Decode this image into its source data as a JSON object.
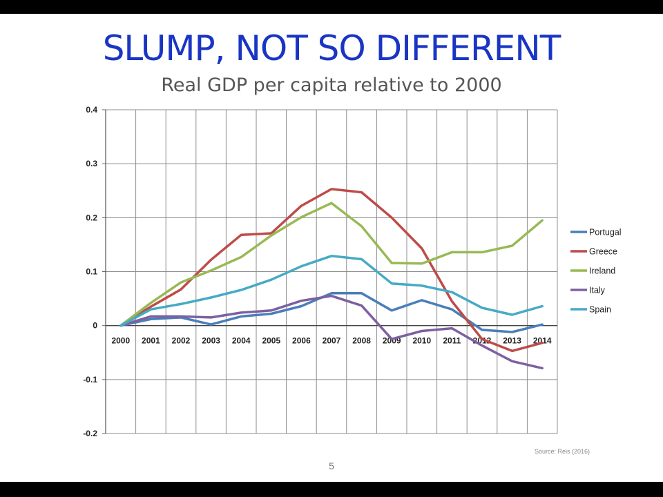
{
  "slide": {
    "title": "SLUMP, NOT SO DIFFERENT",
    "subtitle": "Real GDP per capita relative to 2000",
    "source": "Source: Reis (2016)",
    "page_number": "5"
  },
  "chart_data": {
    "type": "line",
    "title": "",
    "xlabel": "",
    "ylabel": "",
    "categories": [
      "2000",
      "2001",
      "2002",
      "2003",
      "2004",
      "2005",
      "2006",
      "2007",
      "2008",
      "2009",
      "2010",
      "2011",
      "2012",
      "2013",
      "2014"
    ],
    "ylim": [
      -0.2,
      0.4
    ],
    "yticks": [
      0.4,
      0.3,
      0.2,
      0.1,
      0,
      -0.1,
      -0.2
    ],
    "ytick_labels": [
      "0.4",
      "0.3",
      "0.2",
      "0.1",
      "0",
      "-0.1",
      "-0.2"
    ],
    "grid": true,
    "legend_position": "right",
    "series": [
      {
        "name": "Portugal",
        "color": "#4a7ebb",
        "values": [
          0,
          0.012,
          0.015,
          0.002,
          0.017,
          0.022,
          0.036,
          0.06,
          0.06,
          0.028,
          0.047,
          0.03,
          -0.008,
          -0.012,
          0.002
        ]
      },
      {
        "name": "Greece",
        "color": "#be4b48",
        "values": [
          0,
          0.035,
          0.067,
          0.122,
          0.168,
          0.171,
          0.222,
          0.253,
          0.247,
          0.2,
          0.143,
          0.045,
          -0.025,
          -0.047,
          -0.032
        ]
      },
      {
        "name": "Ireland",
        "color": "#98b954",
        "values": [
          0,
          0.042,
          0.08,
          0.102,
          0.127,
          0.167,
          0.201,
          0.227,
          0.184,
          0.116,
          0.115,
          0.136,
          0.136,
          0.148,
          0.195
        ]
      },
      {
        "name": "Italy",
        "color": "#7d60a0",
        "values": [
          0,
          0.017,
          0.017,
          0.015,
          0.024,
          0.028,
          0.046,
          0.055,
          0.037,
          -0.025,
          -0.01,
          -0.005,
          -0.037,
          -0.066,
          -0.079
        ]
      },
      {
        "name": "Spain",
        "color": "#46aac5",
        "values": [
          0,
          0.03,
          0.04,
          0.052,
          0.066,
          0.085,
          0.11,
          0.129,
          0.123,
          0.078,
          0.074,
          0.062,
          0.033,
          0.02,
          0.036
        ]
      }
    ]
  }
}
